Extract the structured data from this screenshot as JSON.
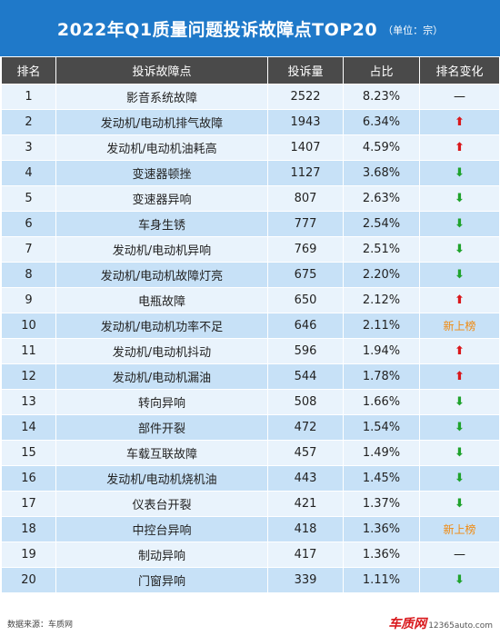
{
  "title": "2022年Q1质量问题投诉故障点TOP20",
  "unit": "（单位：宗）",
  "headers": [
    "排名",
    "投诉故障点",
    "投诉量",
    "占比",
    "排名变化"
  ],
  "rows": [
    {
      "rank": "1",
      "fault": "影音系统故障",
      "count": "2522",
      "share": "8.23%",
      "change": "same",
      "change_text": "—"
    },
    {
      "rank": "2",
      "fault": "发动机/电动机排气故障",
      "count": "1943",
      "share": "6.34%",
      "change": "up",
      "change_text": "⬆"
    },
    {
      "rank": "3",
      "fault": "发动机/电动机油耗高",
      "count": "1407",
      "share": "4.59%",
      "change": "up",
      "change_text": "⬆"
    },
    {
      "rank": "4",
      "fault": "变速器顿挫",
      "count": "1127",
      "share": "3.68%",
      "change": "down",
      "change_text": "⬇"
    },
    {
      "rank": "5",
      "fault": "变速器异响",
      "count": "807",
      "share": "2.63%",
      "change": "down",
      "change_text": "⬇"
    },
    {
      "rank": "6",
      "fault": "车身生锈",
      "count": "777",
      "share": "2.54%",
      "change": "down",
      "change_text": "⬇"
    },
    {
      "rank": "7",
      "fault": "发动机/电动机异响",
      "count": "769",
      "share": "2.51%",
      "change": "down",
      "change_text": "⬇"
    },
    {
      "rank": "8",
      "fault": "发动机/电动机故障灯亮",
      "count": "675",
      "share": "2.20%",
      "change": "down",
      "change_text": "⬇"
    },
    {
      "rank": "9",
      "fault": "电瓶故障",
      "count": "650",
      "share": "2.12%",
      "change": "up",
      "change_text": "⬆"
    },
    {
      "rank": "10",
      "fault": "发动机/电动机功率不足",
      "count": "646",
      "share": "2.11%",
      "change": "new",
      "change_text": "新上榜"
    },
    {
      "rank": "11",
      "fault": "发动机/电动机抖动",
      "count": "596",
      "share": "1.94%",
      "change": "up",
      "change_text": "⬆"
    },
    {
      "rank": "12",
      "fault": "发动机/电动机漏油",
      "count": "544",
      "share": "1.78%",
      "change": "up",
      "change_text": "⬆"
    },
    {
      "rank": "13",
      "fault": "转向异响",
      "count": "508",
      "share": "1.66%",
      "change": "down",
      "change_text": "⬇"
    },
    {
      "rank": "14",
      "fault": "部件开裂",
      "count": "472",
      "share": "1.54%",
      "change": "down",
      "change_text": "⬇"
    },
    {
      "rank": "15",
      "fault": "车载互联故障",
      "count": "457",
      "share": "1.49%",
      "change": "down",
      "change_text": "⬇"
    },
    {
      "rank": "16",
      "fault": "发动机/电动机烧机油",
      "count": "443",
      "share": "1.45%",
      "change": "down",
      "change_text": "⬇"
    },
    {
      "rank": "17",
      "fault": "仪表台开裂",
      "count": "421",
      "share": "1.37%",
      "change": "down",
      "change_text": "⬇"
    },
    {
      "rank": "18",
      "fault": "中控台异响",
      "count": "418",
      "share": "1.36%",
      "change": "new",
      "change_text": "新上榜"
    },
    {
      "rank": "19",
      "fault": "制动异响",
      "count": "417",
      "share": "1.36%",
      "change": "same",
      "change_text": "—"
    },
    {
      "rank": "20",
      "fault": "门窗异响",
      "count": "339",
      "share": "1.11%",
      "change": "down",
      "change_text": "⬇"
    }
  ],
  "footer": {
    "source": "数据来源：车质网",
    "brand_logo": "车质网",
    "brand_site": "12365auto.com"
  },
  "colors": {
    "title_bg": "#1f79c9",
    "header_bg": "#4a4a4a",
    "row_light": "#e9f3fc",
    "row_dark": "#c7e1f7",
    "up": "#d9181c",
    "down": "#20a32d",
    "new": "#f08a10"
  }
}
